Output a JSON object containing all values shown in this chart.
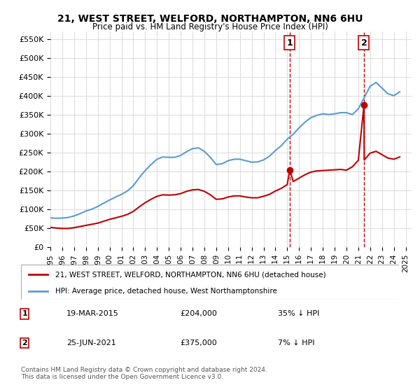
{
  "title": "21, WEST STREET, WELFORD, NORTHAMPTON, NN6 6HU",
  "subtitle": "Price paid vs. HM Land Registry's House Price Index (HPI)",
  "ylabel_ticks": [
    0,
    50000,
    100000,
    150000,
    200000,
    250000,
    300000,
    350000,
    400000,
    450000,
    500000,
    550000
  ],
  "ylabel_labels": [
    "£0",
    "£50K",
    "£100K",
    "£150K",
    "£200K",
    "£250K",
    "£300K",
    "£350K",
    "£400K",
    "£450K",
    "£500K",
    "£550K"
  ],
  "ylim": [
    0,
    570000
  ],
  "xmin": 1995.0,
  "xmax": 2025.5,
  "hpi_color": "#5b9bd5",
  "price_color": "#c00000",
  "dashed_color": "#c00000",
  "background_color": "#ffffff",
  "grid_color": "#dddddd",
  "legend_label_red": "21, WEST STREET, WELFORD, NORTHAMPTON, NN6 6HU (detached house)",
  "legend_label_blue": "HPI: Average price, detached house, West Northamptonshire",
  "point1_date": "19-MAR-2015",
  "point1_price": 204000,
  "point1_label": "35% ↓ HPI",
  "point1_x": 2015.21,
  "point2_date": "25-JUN-2021",
  "point2_price": 375000,
  "point2_label": "7% ↓ HPI",
  "point2_x": 2021.48,
  "footer": "Contains HM Land Registry data © Crown copyright and database right 2024.\nThis data is licensed under the Open Government Licence v3.0.",
  "hpi_x": [
    1995.0,
    1995.5,
    1996.0,
    1996.5,
    1997.0,
    1997.5,
    1998.0,
    1998.5,
    1999.0,
    1999.5,
    2000.0,
    2000.5,
    2001.0,
    2001.5,
    2002.0,
    2002.5,
    2003.0,
    2003.5,
    2004.0,
    2004.5,
    2005.0,
    2005.5,
    2006.0,
    2006.5,
    2007.0,
    2007.5,
    2008.0,
    2008.5,
    2009.0,
    2009.5,
    2010.0,
    2010.5,
    2011.0,
    2011.5,
    2012.0,
    2012.5,
    2013.0,
    2013.5,
    2014.0,
    2014.5,
    2015.0,
    2015.5,
    2016.0,
    2016.5,
    2017.0,
    2017.5,
    2018.0,
    2018.5,
    2019.0,
    2019.5,
    2020.0,
    2020.5,
    2021.0,
    2021.5,
    2022.0,
    2022.5,
    2023.0,
    2023.5,
    2024.0,
    2024.5
  ],
  "hpi_y": [
    77000,
    76000,
    76500,
    78000,
    82000,
    88000,
    95000,
    100000,
    107000,
    116000,
    124000,
    132000,
    139000,
    148000,
    162000,
    183000,
    202000,
    218000,
    232000,
    238000,
    237000,
    237000,
    242000,
    252000,
    260000,
    262000,
    253000,
    237000,
    218000,
    220000,
    228000,
    232000,
    232000,
    228000,
    224000,
    225000,
    230000,
    240000,
    255000,
    268000,
    285000,
    298000,
    315000,
    330000,
    342000,
    348000,
    352000,
    350000,
    352000,
    355000,
    355000,
    350000,
    365000,
    395000,
    425000,
    435000,
    420000,
    405000,
    400000,
    410000
  ],
  "price_x": [
    1995.0,
    1995.5,
    1996.0,
    1996.5,
    1997.0,
    1997.5,
    1998.0,
    1998.5,
    1999.0,
    1999.5,
    2000.0,
    2000.5,
    2001.0,
    2001.5,
    2002.0,
    2002.5,
    2003.0,
    2003.5,
    2004.0,
    2004.5,
    2005.0,
    2005.5,
    2006.0,
    2006.5,
    2007.0,
    2007.5,
    2008.0,
    2008.5,
    2009.0,
    2009.5,
    2010.0,
    2010.5,
    2011.0,
    2011.5,
    2012.0,
    2012.5,
    2013.0,
    2013.5,
    2014.0,
    2014.5,
    2015.0,
    2015.21,
    2015.5,
    2016.0,
    2016.5,
    2017.0,
    2017.5,
    2018.0,
    2018.5,
    2019.0,
    2019.5,
    2020.0,
    2020.5,
    2021.0,
    2021.48,
    2021.5,
    2022.0,
    2022.5,
    2023.0,
    2023.5,
    2024.0,
    2024.5
  ],
  "price_y": [
    52000,
    50000,
    49000,
    49000,
    51000,
    54000,
    57000,
    60000,
    63000,
    68000,
    73000,
    77000,
    81000,
    86000,
    94000,
    106000,
    117000,
    126000,
    134000,
    138000,
    137000,
    138000,
    141000,
    147000,
    151000,
    152000,
    147000,
    138000,
    126000,
    127000,
    132000,
    135000,
    135000,
    132000,
    130000,
    130000,
    134000,
    139000,
    148000,
    155000,
    165000,
    204000,
    173000,
    182000,
    191000,
    198000,
    201000,
    202000,
    203000,
    204000,
    205000,
    203000,
    212000,
    229000,
    375000,
    230000,
    248000,
    253000,
    244000,
    235000,
    232000,
    238000
  ]
}
